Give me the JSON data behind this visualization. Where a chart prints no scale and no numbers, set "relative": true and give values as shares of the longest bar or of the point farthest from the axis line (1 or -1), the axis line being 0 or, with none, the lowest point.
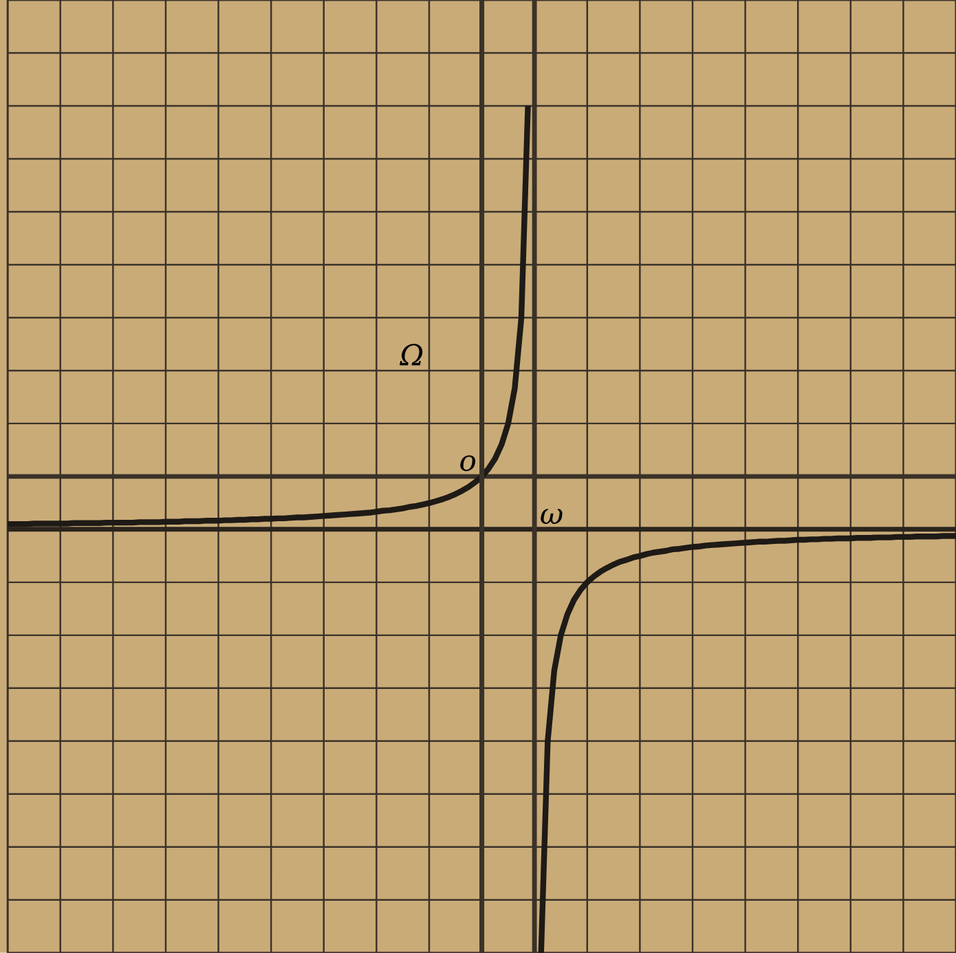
{
  "chart_data": {
    "type": "line",
    "relative": true,
    "categories": [
      null,
      null,
      null,
      null,
      null,
      null,
      null,
      null,
      null,
      null,
      null,
      null,
      null,
      null,
      null,
      null,
      null,
      null,
      null,
      null,
      null,
      null,
      null,
      null,
      null,
      null,
      null,
      null,
      null,
      null,
      null,
      null,
      null,
      null,
      null,
      null,
      null,
      null,
      null,
      null,
      null,
      null,
      null,
      null,
      null,
      null,
      null,
      null,
      null,
      null,
      null,
      null,
      null,
      null,
      null,
      null,
      null,
      null,
      null,
      null,
      null,
      null,
      null,
      null,
      null,
      null,
      null,
      null,
      null,
      null,
      null,
      null,
      null,
      null,
      null,
      null,
      null,
      null,
      null,
      null,
      null,
      null,
      null,
      null,
      null,
      null,
      null,
      null,
      null,
      null,
      null,
      null,
      null,
      null,
      null,
      null,
      null,
      null,
      null,
      null,
      null,
      null,
      null,
      null,
      null,
      null,
      null,
      null,
      null,
      null,
      null,
      null,
      null,
      null,
      null,
      null,
      null,
      null,
      null,
      null,
      null,
      null,
      null,
      null,
      null,
      null,
      null,
      null,
      null,
      null,
      null,
      null,
      null,
      null,
      null,
      null,
      null,
      null,
      null,
      null,
      null,
      null,
      null,
      null,
      null
    ],
    "series": [
      {
        "color": "#1e1a16",
        "values": [
          -0.1,
          -0.1,
          -0.1,
          -0.1,
          -0.099,
          -0.099,
          -0.099,
          -0.099,
          -0.099,
          -0.099,
          -0.098,
          -0.098,
          -0.098,
          -0.098,
          -0.098,
          -0.097,
          -0.097,
          -0.097,
          -0.097,
          -0.097,
          -0.096,
          -0.096,
          -0.096,
          -0.096,
          -0.095,
          -0.095,
          -0.095,
          -0.094,
          -0.094,
          -0.094,
          -0.093,
          -0.093,
          -0.093,
          -0.092,
          -0.092,
          -0.091,
          -0.091,
          -0.09,
          -0.09,
          -0.089,
          -0.089,
          -0.088,
          -0.088,
          -0.087,
          -0.086,
          -0.086,
          -0.085,
          -0.084,
          -0.083,
          -0.082,
          -0.081,
          -0.08,
          -0.079,
          -0.078,
          -0.077,
          -0.076,
          -0.074,
          -0.072,
          -0.071,
          -0.069,
          -0.067,
          -0.064,
          -0.062,
          -0.059,
          -0.056,
          -0.052,
          -0.048,
          -0.043,
          -0.037,
          -0.03,
          -0.022,
          -0.012,
          0,
          0.016,
          0.037,
          0.067,
          0.111,
          0.185,
          0.333,
          0.778,
          null,
          -1.0,
          -0.556,
          -0.407,
          -0.333,
          -0.289,
          -0.259,
          -0.238,
          -0.222,
          -0.21,
          -0.2,
          -0.192,
          -0.185,
          -0.179,
          -0.175,
          -0.17,
          -0.167,
          -0.163,
          -0.16,
          -0.158,
          -0.156,
          -0.153,
          -0.152,
          -0.15,
          -0.148,
          -0.147,
          -0.145,
          -0.144,
          -0.143,
          -0.142,
          -0.141,
          -0.14,
          -0.139,
          -0.138,
          -0.137,
          -0.137,
          -0.136,
          -0.135,
          -0.135,
          -0.134,
          -0.133,
          -0.133,
          -0.132,
          -0.132,
          -0.131,
          -0.131,
          -0.13,
          -0.13,
          -0.13,
          -0.129,
          -0.129,
          -0.129,
          -0.128,
          -0.128,
          -0.128,
          -0.127,
          -0.127,
          -0.127,
          -0.126,
          -0.126,
          -0.126,
          -0.126,
          -0.125,
          -0.125,
          -0.125
        ]
      }
    ],
    "ref_lines": [
      {
        "axis": "y",
        "value": -0.111,
        "color": "#2a241c"
      }
    ],
    "annotations": [
      "o",
      "ω",
      "Ω"
    ],
    "grid": true,
    "line_style": "solid"
  }
}
